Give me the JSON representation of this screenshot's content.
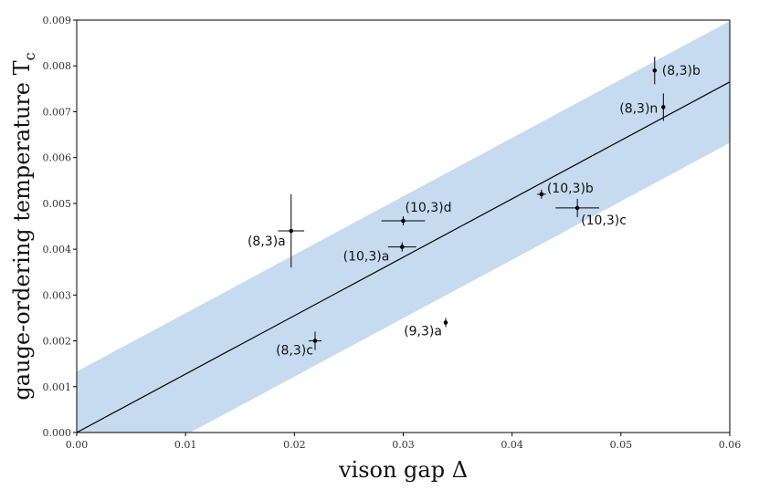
{
  "chart_data": {
    "type": "scatter",
    "xlabel": "vison gap Δ",
    "ylabel": "gauge-ordering temperature T",
    "ylabel_sub": "c",
    "xlim": [
      0,
      0.06
    ],
    "ylim": [
      0,
      0.009
    ],
    "x_ticks": [
      "0.00",
      "0.01",
      "0.02",
      "0.03",
      "0.04",
      "0.05",
      "0.06"
    ],
    "y_ticks": [
      "0.000",
      "0.001",
      "0.002",
      "0.003",
      "0.004",
      "0.005",
      "0.006",
      "0.007",
      "0.008",
      "0.009"
    ],
    "grid": false,
    "fit_line": {
      "slope": 0.1275,
      "intercept": 0
    },
    "band": {
      "lower_at_x0": -0.00133,
      "upper_at_x0": 0.00133,
      "color": "#c6dbef"
    },
    "points": [
      {
        "label": "(8,3)b",
        "x": 0.0531,
        "y": 0.0079,
        "xerr": 0.0001,
        "yerr": 0.0003
      },
      {
        "label": "(8,3)n",
        "x": 0.0539,
        "y": 0.0071,
        "xerr": 0.0001,
        "yerr": 0.0003
      },
      {
        "label": "(10,3)b",
        "x": 0.0427,
        "y": 0.0052,
        "xerr": 0.0004,
        "yerr": 0.0001
      },
      {
        "label": "(10,3)c",
        "x": 0.046,
        "y": 0.0049,
        "xerr": 0.002,
        "yerr": 0.0002
      },
      {
        "label": "(10,3)d",
        "x": 0.03,
        "y": 0.00462,
        "xerr": 0.002,
        "yerr": 0.0001
      },
      {
        "label": "(10,3)a",
        "x": 0.0299,
        "y": 0.00405,
        "xerr": 0.0013,
        "yerr": 0.0001
      },
      {
        "label": "(8,3)a",
        "x": 0.0197,
        "y": 0.0044,
        "xerr": 0.0012,
        "yerr": 0.0008
      },
      {
        "label": "(8,3)c",
        "x": 0.0219,
        "y": 0.002,
        "xerr": 0.0006,
        "yerr": 0.0002
      },
      {
        "label": "(9,3)a",
        "x": 0.0339,
        "y": 0.0024,
        "xerr": 0.0001,
        "yerr": 0.0001
      }
    ],
    "colors": {
      "band": "#c6dbef",
      "line": "#000000",
      "points": "#000000"
    }
  }
}
